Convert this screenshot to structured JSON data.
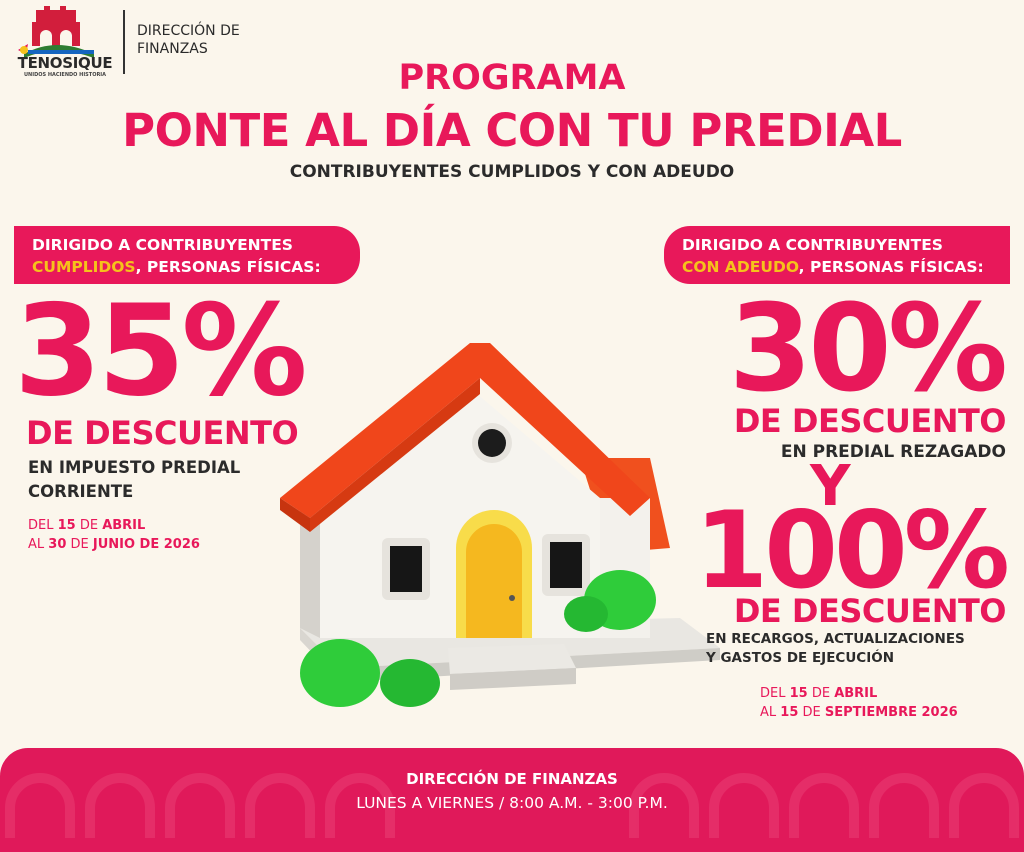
{
  "header": {
    "logo_name": "TENOSIQUE",
    "logo_motto": "UNIDOS HACIENDO HISTORIA",
    "department_line1": "DIRECCIÓN DE",
    "department_line2": "FINANZAS"
  },
  "program_label": "PROGRAMA",
  "title": "PONTE AL DÍA CON TU PREDIAL",
  "subtitle": "CONTRIBUYENTES CUMPLIDOS Y CON ADEUDO",
  "left_offer": {
    "banner_line1": "DIRIGIDO A CONTRIBUYENTES",
    "banner_highlight": "CUMPLIDOS",
    "banner_rest": ", PERSONAS FÍSICAS:",
    "percent": "35%",
    "discount_label": "DE DESCUENTO",
    "concept_line1": "EN IMPUESTO PREDIAL",
    "concept_line2": "CORRIENTE",
    "date_del": "DEL ",
    "date_start_day": "15",
    "date_de1": " DE ",
    "date_start_month": "ABRIL",
    "date_al": "AL ",
    "date_end": "30",
    "date_de2": " DE ",
    "date_end_month_year": "JUNIO DE 2026"
  },
  "right_offer": {
    "banner_line1": "DIRIGIDO A CONTRIBUYENTES",
    "banner_highlight": "CON ADEUDO",
    "banner_rest": ", PERSONAS FÍSICAS:",
    "percent1": "30%",
    "discount_label1": "DE DESCUENTO",
    "concept1": "EN PREDIAL REZAGADO",
    "conjunction": "Y",
    "percent2": "100%",
    "discount_label2": "DE DESCUENTO",
    "concept2_line1": "EN RECARGOS, ACTUALIZACIONES",
    "concept2_line2": "Y GASTOS DE EJECUCIÓN",
    "date_del": "DEL ",
    "date_start_day": "15",
    "date_de1": " DE ",
    "date_start_month": "ABRIL",
    "date_al": "AL ",
    "date_end": "15",
    "date_de2": " DE ",
    "date_end_month_year": "SEPTIEMBRE 2026"
  },
  "footer": {
    "title": "DIRECCIÓN DE FINANZAS",
    "hours": "LUNES A VIERNES / 8:00 A.M. - 3:00 P.M."
  },
  "colors": {
    "accent": "#e8185a",
    "highlight": "#f5c21b",
    "background": "#fbf6ec",
    "text": "#2b2b2b"
  },
  "icons": {
    "logo": "tenosique-municipal-logo",
    "house": "house-illustration"
  }
}
